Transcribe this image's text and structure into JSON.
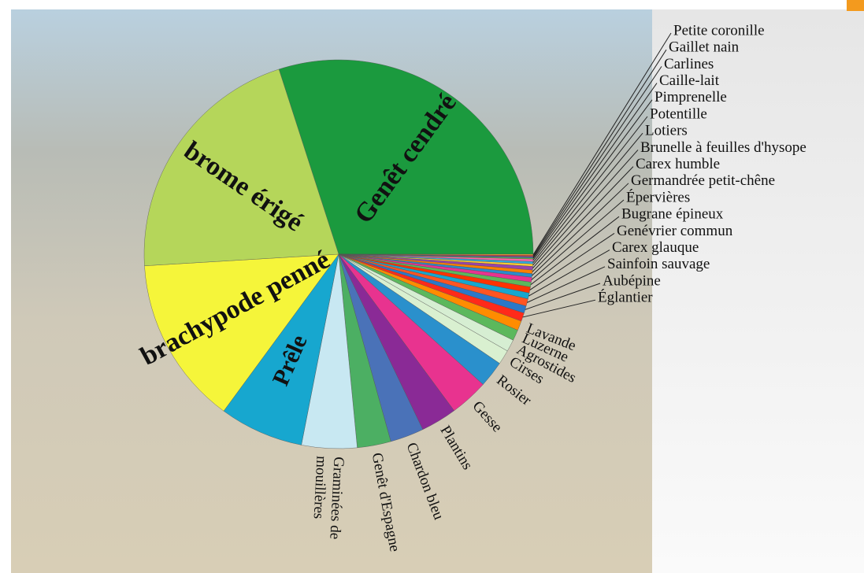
{
  "chart_data": {
    "type": "pie",
    "categories": [
      "Genêt cendré",
      "Petite coronille",
      "Gaillet nain",
      "Carlines",
      "Caille-lait",
      "Pimprenelle",
      "Potentille",
      "Lotiers",
      "Brunelle à feuilles d'hysope",
      "Carex humble",
      "Germandrée petit-chêne",
      "Épervières",
      "Bugrane épineux",
      "Genévrier commun",
      "Carex glauque",
      "Sainfoin sauvage",
      "Aubépine",
      "Églantier",
      "Lavande",
      "Luzerne",
      "Agrostides",
      "Cirses",
      "Rosier",
      "Gesse",
      "Plantins",
      "Chardon bleu",
      "Genêt d'Espagne",
      "Graminées de mouillères",
      "Prêle",
      "brachypode penné",
      "brome érigé"
    ],
    "values": [
      30,
      0.1,
      0.1,
      0.1,
      0.1,
      0.2,
      0.2,
      0.2,
      0.3,
      0.3,
      0.3,
      0.4,
      0.4,
      0.5,
      0.5,
      0.6,
      0.6,
      0.7,
      0.8,
      0.9,
      1.0,
      1.2,
      2.2,
      3.2,
      3.0,
      2.8,
      2.8,
      4.6,
      7,
      14,
      21
    ],
    "colors": [
      "#1b9a3e",
      "#ff9933",
      "#e63333",
      "#3366cc",
      "#66bb44",
      "#ff66aa",
      "#33aadd",
      "#ffcc33",
      "#9944aa",
      "#ff7f00",
      "#2b8ccc",
      "#e8338f",
      "#5cb85c",
      "#ff3300",
      "#17a7cf",
      "#ff5522",
      "#2b78c8",
      "#ff2a1a",
      "#ff8c00",
      "#5cb85c",
      "#d6eed2",
      "#d9f0d0",
      "#2a90cc",
      "#e8338f",
      "#8a2a96",
      "#4a72b8",
      "#4caf63",
      "#c8e8f2",
      "#17a7cf",
      "#f5f53a",
      "#b5d65a"
    ]
  }
}
